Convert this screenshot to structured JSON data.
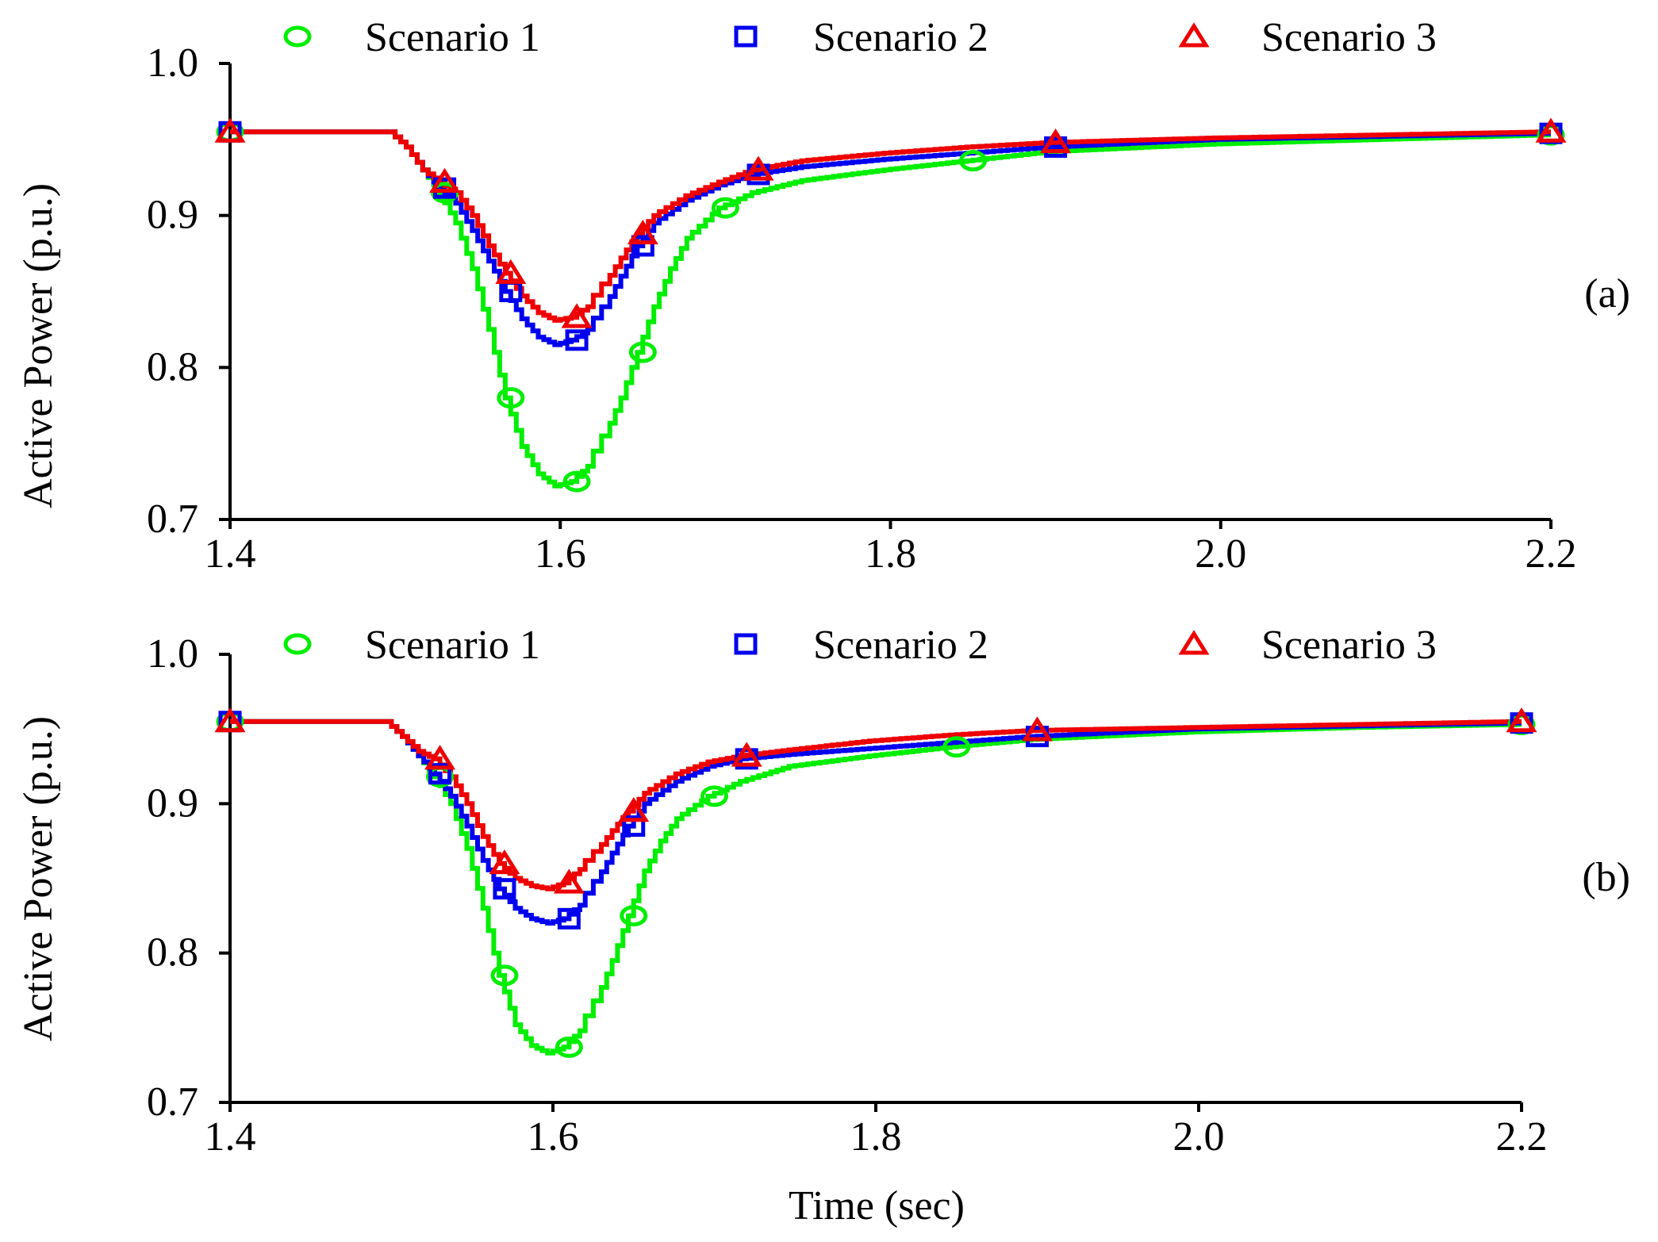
{
  "chart_data": [
    {
      "type": "line",
      "panel_label": "(a)",
      "ylabel": "Active Power (p.u.)",
      "xlabel": "",
      "xlim": [
        1.4,
        2.2
      ],
      "ylim": [
        0.7,
        1.0
      ],
      "xticks": [
        "1.4",
        "1.6",
        "1.8",
        "2.0",
        "2.2"
      ],
      "yticks": [
        "0.7",
        "0.8",
        "0.9",
        "1.0"
      ],
      "legend_position": "top",
      "series": [
        {
          "name": "Scenario 1",
          "color": "#00ee00",
          "marker": "circle",
          "x": [
            1.4,
            1.5,
            1.51,
            1.52,
            1.53,
            1.54,
            1.55,
            1.56,
            1.57,
            1.58,
            1.59,
            1.6,
            1.61,
            1.62,
            1.63,
            1.64,
            1.65,
            1.66,
            1.67,
            1.68,
            1.7,
            1.72,
            1.75,
            1.8,
            1.85,
            1.9,
            2.0,
            2.1,
            2.2
          ],
          "y": [
            0.955,
            0.955,
            0.945,
            0.93,
            0.915,
            0.895,
            0.865,
            0.825,
            0.78,
            0.748,
            0.73,
            0.722,
            0.725,
            0.735,
            0.755,
            0.78,
            0.81,
            0.84,
            0.865,
            0.885,
            0.905,
            0.915,
            0.923,
            0.93,
            0.936,
            0.942,
            0.947,
            0.95,
            0.953
          ]
        },
        {
          "name": "Scenario 2",
          "color": "#0000ee",
          "marker": "square",
          "x": [
            1.4,
            1.5,
            1.51,
            1.52,
            1.53,
            1.54,
            1.55,
            1.56,
            1.57,
            1.58,
            1.59,
            1.6,
            1.61,
            1.62,
            1.63,
            1.64,
            1.65,
            1.66,
            1.68,
            1.7,
            1.72,
            1.75,
            1.8,
            1.85,
            1.9,
            2.0,
            2.1,
            2.2
          ],
          "y": [
            0.955,
            0.955,
            0.945,
            0.93,
            0.918,
            0.908,
            0.89,
            0.87,
            0.85,
            0.832,
            0.82,
            0.815,
            0.818,
            0.825,
            0.84,
            0.86,
            0.88,
            0.895,
            0.91,
            0.92,
            0.927,
            0.932,
            0.937,
            0.941,
            0.945,
            0.95,
            0.952,
            0.954
          ]
        },
        {
          "name": "Scenario 3",
          "color": "#ee0000",
          "marker": "triangle",
          "x": [
            1.4,
            1.5,
            1.51,
            1.52,
            1.53,
            1.54,
            1.55,
            1.56,
            1.57,
            1.58,
            1.59,
            1.6,
            1.61,
            1.62,
            1.63,
            1.64,
            1.65,
            1.66,
            1.68,
            1.7,
            1.72,
            1.75,
            1.8,
            1.85,
            1.9,
            2.0,
            2.1,
            2.2
          ],
          "y": [
            0.955,
            0.955,
            0.945,
            0.93,
            0.922,
            0.915,
            0.9,
            0.88,
            0.862,
            0.847,
            0.836,
            0.831,
            0.833,
            0.84,
            0.855,
            0.872,
            0.888,
            0.9,
            0.913,
            0.922,
            0.93,
            0.936,
            0.941,
            0.945,
            0.948,
            0.951,
            0.953,
            0.955
          ]
        }
      ]
    },
    {
      "type": "line",
      "panel_label": "(b)",
      "ylabel": "Active Power (p.u.)",
      "xlabel": "Time (sec)",
      "xlim": [
        1.4,
        2.2
      ],
      "ylim": [
        0.7,
        1.0
      ],
      "xticks": [
        "1.4",
        "1.6",
        "1.8",
        "2.0",
        "2.2"
      ],
      "yticks": [
        "0.7",
        "0.8",
        "0.9",
        "1.0"
      ],
      "legend_position": "top",
      "series": [
        {
          "name": "Scenario 1",
          "color": "#00ee00",
          "marker": "circle",
          "x": [
            1.4,
            1.5,
            1.51,
            1.52,
            1.53,
            1.54,
            1.55,
            1.56,
            1.57,
            1.58,
            1.59,
            1.6,
            1.61,
            1.62,
            1.63,
            1.64,
            1.65,
            1.66,
            1.67,
            1.68,
            1.7,
            1.72,
            1.75,
            1.8,
            1.85,
            1.9,
            2.0,
            2.1,
            2.2
          ],
          "y": [
            0.955,
            0.955,
            0.945,
            0.932,
            0.918,
            0.9,
            0.87,
            0.83,
            0.785,
            0.752,
            0.738,
            0.733,
            0.737,
            0.748,
            0.768,
            0.795,
            0.825,
            0.855,
            0.875,
            0.89,
            0.905,
            0.915,
            0.925,
            0.932,
            0.938,
            0.943,
            0.948,
            0.951,
            0.953
          ]
        },
        {
          "name": "Scenario 2",
          "color": "#0000ee",
          "marker": "square",
          "x": [
            1.4,
            1.5,
            1.51,
            1.52,
            1.53,
            1.54,
            1.55,
            1.56,
            1.57,
            1.58,
            1.59,
            1.6,
            1.61,
            1.62,
            1.63,
            1.64,
            1.65,
            1.66,
            1.68,
            1.7,
            1.72,
            1.75,
            1.8,
            1.85,
            1.9,
            2.0,
            2.1,
            2.2
          ],
          "y": [
            0.955,
            0.955,
            0.945,
            0.932,
            0.92,
            0.905,
            0.885,
            0.862,
            0.843,
            0.83,
            0.823,
            0.82,
            0.823,
            0.832,
            0.848,
            0.867,
            0.885,
            0.9,
            0.915,
            0.925,
            0.93,
            0.933,
            0.937,
            0.941,
            0.945,
            0.95,
            0.952,
            0.954
          ]
        },
        {
          "name": "Scenario 3",
          "color": "#ee0000",
          "marker": "triangle",
          "x": [
            1.4,
            1.5,
            1.51,
            1.52,
            1.53,
            1.54,
            1.55,
            1.56,
            1.57,
            1.58,
            1.59,
            1.6,
            1.61,
            1.62,
            1.63,
            1.64,
            1.65,
            1.66,
            1.68,
            1.7,
            1.72,
            1.75,
            1.8,
            1.85,
            1.9,
            2.0,
            2.1,
            2.2
          ],
          "y": [
            0.955,
            0.955,
            0.945,
            0.935,
            0.93,
            0.918,
            0.9,
            0.878,
            0.86,
            0.85,
            0.845,
            0.843,
            0.847,
            0.856,
            0.868,
            0.882,
            0.895,
            0.907,
            0.92,
            0.928,
            0.932,
            0.936,
            0.942,
            0.946,
            0.949,
            0.951,
            0.953,
            0.955
          ]
        }
      ]
    }
  ]
}
